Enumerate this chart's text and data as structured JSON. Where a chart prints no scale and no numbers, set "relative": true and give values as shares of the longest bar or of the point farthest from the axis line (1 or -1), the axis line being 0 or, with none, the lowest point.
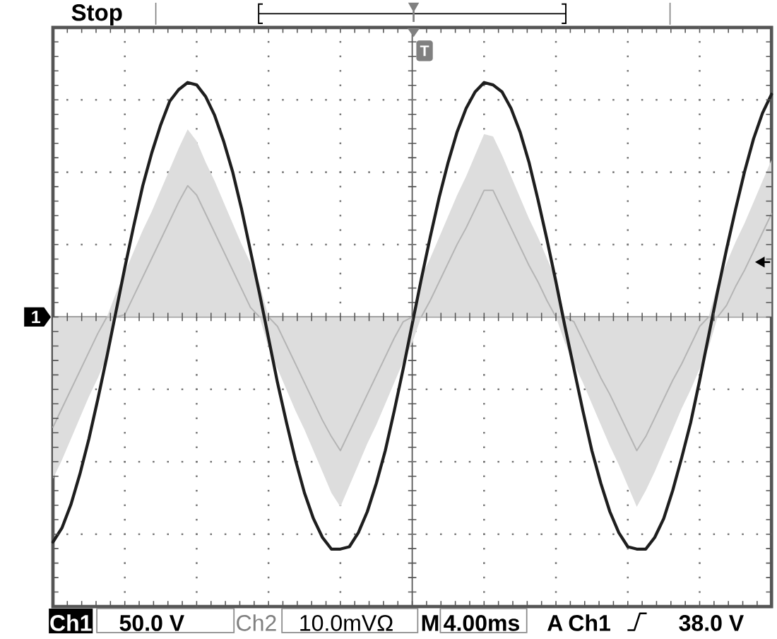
{
  "chart_data": {
    "type": "line",
    "relative": true,
    "categories": [
      null,
      null,
      null,
      null,
      null,
      null,
      null,
      null,
      null,
      null,
      null,
      null,
      null,
      null,
      null,
      null,
      null,
      null,
      null,
      null,
      null,
      null,
      null,
      null,
      null,
      null,
      null,
      null,
      null,
      null,
      null,
      null,
      null,
      null,
      null,
      null,
      null,
      null,
      null,
      null,
      null,
      null,
      null,
      null,
      null,
      null,
      null,
      null,
      null,
      null,
      null,
      null,
      null,
      null,
      null,
      null,
      null,
      null,
      null,
      null,
      null,
      null,
      null,
      null,
      null,
      null,
      null,
      null,
      null,
      null,
      null,
      null,
      null,
      null,
      null,
      null,
      null,
      null,
      null,
      null,
      null
    ],
    "series": [
      {
        "color": "#1e1e1e",
        "values": [
          -0.96,
          -0.9,
          -0.8,
          -0.67,
          -0.52,
          -0.35,
          -0.17,
          0.02,
          0.21,
          0.39,
          0.56,
          0.7,
          0.82,
          0.92,
          0.97,
          1.0,
          0.99,
          0.94,
          0.86,
          0.75,
          0.62,
          0.46,
          0.28,
          0.1,
          -0.09,
          -0.28,
          -0.45,
          -0.61,
          -0.75,
          -0.86,
          -0.94,
          -0.99,
          -0.99,
          -0.98,
          -0.92,
          -0.83,
          -0.71,
          -0.57,
          -0.4,
          -0.22,
          -0.03,
          0.16,
          0.34,
          0.51,
          0.66,
          0.79,
          0.89,
          0.96,
          1.0,
          0.99,
          0.96,
          0.89,
          0.79,
          0.66,
          0.5,
          0.33,
          0.15,
          -0.04,
          -0.22,
          -0.4,
          -0.57,
          -0.71,
          -0.83,
          -0.92,
          -0.98,
          -0.99,
          -0.99,
          -0.94,
          -0.86,
          -0.74,
          -0.6,
          -0.45,
          -0.27,
          -0.08,
          0.11,
          0.29,
          0.46,
          0.62,
          0.76,
          0.87,
          0.95
        ]
      },
      {
        "color": "#b4b4b4",
        "values": [
          -0.47,
          -0.39,
          -0.31,
          -0.23,
          -0.15,
          -0.07,
          0,
          0,
          0.01,
          0.09,
          0.17,
          0.25,
          0.33,
          0.41,
          0.49,
          0.56,
          0.52,
          0.44,
          0.36,
          0.28,
          0.2,
          0.12,
          0.04,
          0,
          0,
          -0.04,
          -0.12,
          -0.2,
          -0.28,
          -0.36,
          -0.44,
          -0.51,
          -0.57,
          -0.49,
          -0.41,
          -0.33,
          -0.25,
          -0.17,
          -0.09,
          -0.02,
          0,
          0,
          0.07,
          0.15,
          0.23,
          0.31,
          0.38,
          0.46,
          0.54,
          0.54,
          0.46,
          0.38,
          0.3,
          0.22,
          0.15,
          0.07,
          0,
          0,
          -0.02,
          -0.1,
          -0.18,
          -0.26,
          -0.33,
          -0.41,
          -0.49,
          -0.57,
          -0.51,
          -0.43,
          -0.35,
          -0.27,
          -0.2,
          -0.12,
          -0.04,
          0,
          0,
          0.05,
          0.13,
          0.2,
          0.28,
          0.36,
          0.44
        ],
        "lower": [
          -0.69,
          -0.61,
          -0.52,
          -0.43,
          -0.34,
          -0.26,
          -0.17,
          0,
          0,
          0,
          0,
          0,
          0,
          0,
          0,
          0,
          0,
          0,
          0,
          0,
          0,
          0,
          0,
          0,
          -0.13,
          -0.22,
          -0.31,
          -0.4,
          -0.48,
          -0.57,
          -0.66,
          -0.75,
          -0.81,
          -0.72,
          -0.63,
          -0.54,
          -0.46,
          -0.37,
          -0.28,
          -0.19,
          -0.11,
          0,
          0,
          0,
          0,
          0,
          0,
          0,
          0,
          0,
          0,
          0,
          0,
          0,
          0,
          0,
          0,
          -0.11,
          -0.2,
          -0.28,
          -0.37,
          -0.46,
          -0.55,
          -0.63,
          -0.72,
          -0.81,
          -0.74,
          -0.66,
          -0.57,
          -0.48,
          -0.39,
          -0.31,
          -0.22,
          -0.13,
          0,
          0,
          0,
          0,
          0,
          0,
          0
        ],
        "upper": [
          0,
          0,
          0,
          0,
          0,
          0,
          0,
          0.1,
          0.19,
          0.28,
          0.37,
          0.45,
          0.54,
          0.63,
          0.72,
          0.8,
          0.75,
          0.66,
          0.58,
          0.49,
          0.4,
          0.31,
          0.23,
          0.14,
          0,
          0,
          0,
          0,
          0,
          0,
          0,
          0,
          0,
          0,
          0,
          0,
          0,
          0,
          0,
          0,
          0,
          0.17,
          0.25,
          0.34,
          0.43,
          0.52,
          0.6,
          0.69,
          0.78,
          0.77,
          0.69,
          0.6,
          0.51,
          0.42,
          0.34,
          0.25,
          0.16,
          0,
          0,
          0,
          0,
          0,
          0,
          0,
          0,
          0,
          0,
          0,
          0,
          0,
          0,
          0,
          0,
          0,
          0.14,
          0.23,
          0.32,
          0.4,
          0.49,
          0.58,
          0.67
        ]
      }
    ],
    "grid": true,
    "line_style": "solid",
    "marker": "none",
    "annotations": [
      "Stop",
      "Ch1",
      "50.0 V",
      "Ch2",
      "10.0mVΩ",
      "M",
      "4.00ms",
      "A",
      "Ch1",
      "38.0 V",
      {
        "text": "1",
        "y": 0
      },
      "T"
    ]
  }
}
